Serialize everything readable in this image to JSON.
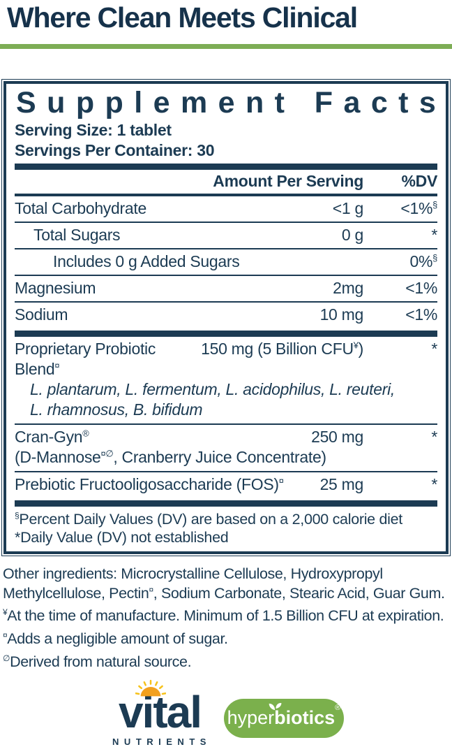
{
  "page": {
    "title": "Where Clean Meets Clinical"
  },
  "colors": {
    "navy": "#1c3b53",
    "rule_green": "#7dad55",
    "pill_green": "#7bb04c",
    "sun_orange": "#f2a01e",
    "ray_yellow": "#f6c21a"
  },
  "panel": {
    "title": "Supplement Facts",
    "serving_size": "Serving Size: 1 tablet",
    "servings_per_container": "Servings Per Container: 30",
    "header": {
      "amount": "Amount Per Serving",
      "dv": "%DV"
    },
    "rows": [
      {
        "label": "Total Carbohydrate",
        "amount": "<1 g",
        "dv": "<1%",
        "dv_sup": "§"
      },
      {
        "label": "Total Sugars",
        "amount": "0 g",
        "dv": "*"
      },
      {
        "label": "Includes 0 g Added Sugars",
        "dv": "0%",
        "dv_sup": "§"
      },
      {
        "label": "Magnesium",
        "amount": "2mg",
        "dv": "<1%"
      },
      {
        "label": "Sodium",
        "amount": "10 mg",
        "dv": "<1%"
      },
      {
        "label": "Proprietary Probiotic Blend",
        "label_sup": "¤",
        "amount": "150 mg (5 Billion CFU",
        "amount_sup": "¥",
        "amount_post": ")",
        "dv": "*",
        "sublines": [
          "L. plantarum, L. fermentum, L. acidophilus, L. reuteri,",
          "L. rhamnosus, B. bifidum"
        ]
      },
      {
        "label": "Cran-Gyn",
        "label_sup": "®",
        "amount": "250 mg",
        "dv": "*",
        "subline_pre": "(D-Mannose",
        "subline_sup": "¤∅",
        "subline_post": ", Cranberry Juice Concentrate)"
      },
      {
        "label": "Prebiotic Fructooligosaccharide (FOS)",
        "label_sup": "¤",
        "amount": "25 mg",
        "dv": "*"
      }
    ],
    "footnotes": [
      {
        "sup": "§",
        "text": "Percent Daily Values (DV) are based on a 2,000 calorie diet"
      },
      {
        "pre": "*",
        "text": "Daily Value (DV) not established"
      }
    ]
  },
  "other_ingredients": {
    "pre": "Other ingredients: Microcrystalline Cellulose, Hydroxypropyl Methylcellulose, Pectin",
    "sup": "¤",
    "post": ", Sodium Carbonate, Stearic Acid, Guar Gum."
  },
  "footnotes_below": [
    {
      "sup": "¥",
      "text": "At the time of manufacture. Minimum of 1.5 Billion CFU at expiration."
    },
    {
      "sup": "¤",
      "text": "Adds a negligible amount of sugar."
    },
    {
      "sup": "∅",
      "text": "Derived from natural source."
    }
  ],
  "logos": {
    "vital": {
      "wordmark": "vital",
      "subtext": "NUTRIENTS"
    },
    "hyperbiotics": {
      "part1": "hyper",
      "part2": "biotics",
      "registered": "®"
    }
  }
}
